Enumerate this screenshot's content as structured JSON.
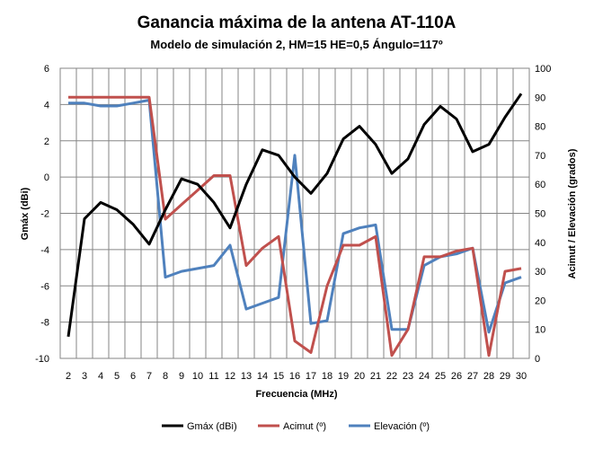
{
  "chart_data": {
    "type": "line",
    "title": "Ganancia máxima de la antena AT-110A",
    "subtitle": "Modelo de simulación 2, HM=15 HE=0,5 Ángulo=117º",
    "xlabel": "Frecuencia (MHz)",
    "ylabel": "Gmáx (dBi)",
    "y2label": "Acimut / Elevación  (grados)",
    "x": [
      2,
      3,
      4,
      5,
      6,
      7,
      8,
      9,
      10,
      11,
      12,
      13,
      14,
      15,
      16,
      17,
      18,
      19,
      20,
      21,
      22,
      23,
      24,
      25,
      26,
      27,
      28,
      29,
      30
    ],
    "ylim": [
      -10,
      6
    ],
    "yticks": [
      -10,
      -8,
      -6,
      -4,
      -2,
      0,
      2,
      4,
      6
    ],
    "y2lim": [
      0,
      100
    ],
    "y2ticks": [
      0,
      10,
      20,
      30,
      40,
      50,
      60,
      70,
      80,
      90,
      100
    ],
    "grid": true,
    "legend_position": "bottom",
    "series": [
      {
        "name": "Gmáx (dBi)",
        "axis": "left",
        "color": "#000000",
        "values": [
          -8.8,
          -2.3,
          -1.4,
          -1.8,
          -2.6,
          -3.7,
          -1.8,
          -0.1,
          -0.4,
          -1.4,
          -2.8,
          -0.4,
          1.5,
          1.2,
          0.0,
          -0.9,
          0.2,
          2.1,
          2.8,
          1.8,
          0.2,
          1.0,
          2.9,
          3.9,
          3.2,
          1.4,
          1.8,
          3.3,
          4.6
        ]
      },
      {
        "name": "Acimut (º)",
        "axis": "right",
        "color": "#c0504d",
        "values": [
          90,
          90,
          90,
          90,
          90,
          90,
          48,
          53,
          58,
          63,
          63,
          32,
          38,
          42,
          6,
          2,
          25,
          39,
          39,
          42,
          1,
          10,
          35,
          35,
          37,
          38,
          1,
          30,
          31
        ]
      },
      {
        "name": "Elevación (º)",
        "axis": "right",
        "color": "#4f81bd",
        "values": [
          88,
          88,
          87,
          87,
          88,
          89,
          28,
          30,
          31,
          32,
          39,
          17,
          19,
          21,
          70,
          12,
          13,
          43,
          45,
          46,
          10,
          10,
          32,
          35,
          36,
          38,
          9,
          26,
          28
        ]
      }
    ]
  }
}
